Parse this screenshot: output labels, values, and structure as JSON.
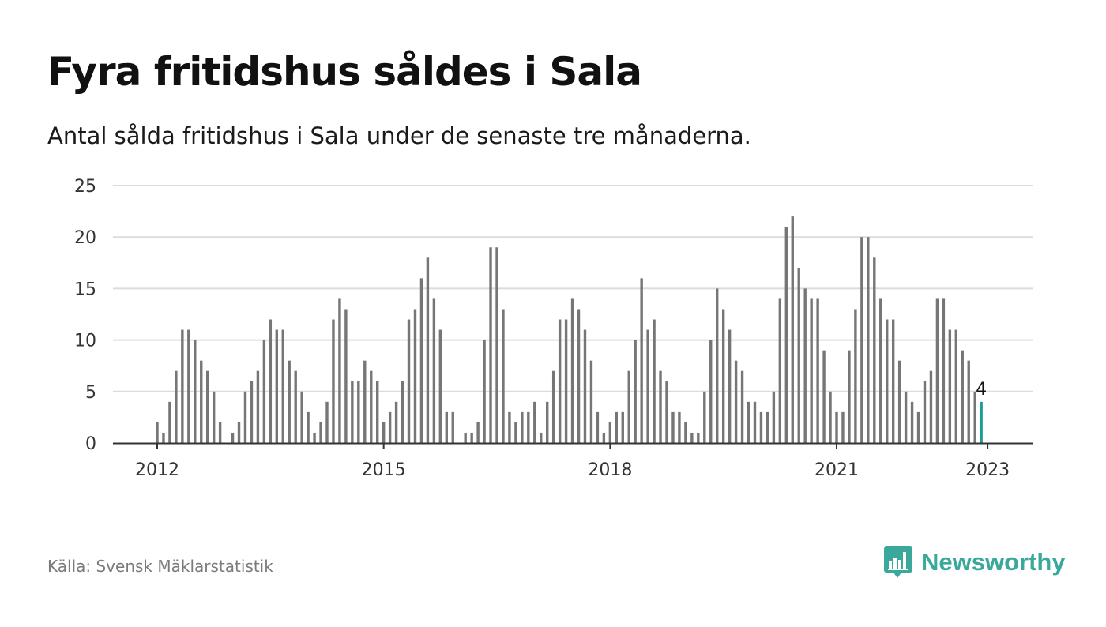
{
  "header": {
    "title": "Fyra fritidshus såldes i Sala",
    "subtitle": "Antal sålda fritidshus i Sala under de senaste tre månaderna."
  },
  "footer": {
    "source": "Källa: Svensk Mäklarstatistik",
    "brand_name": "Newsworthy",
    "brand_icon": "bar-chart-speech-bubble-icon"
  },
  "colors": {
    "bar": "#767676",
    "highlight": "#1a9c98",
    "grid": "#dcdcdc",
    "axis": "#333333",
    "brand": "#3aa89a"
  },
  "chart_data": {
    "type": "bar",
    "x_unit": "month",
    "x_start": "2012-01",
    "x_end": "2023-01",
    "ylim": [
      0,
      25
    ],
    "yticks": [
      0,
      5,
      10,
      15,
      20,
      25
    ],
    "y_tick_labels": [
      "0",
      "5",
      "10",
      "15",
      "20",
      "25"
    ],
    "xticks": [
      "2012",
      "2015",
      "2018",
      "2021",
      "2023"
    ],
    "grid": true,
    "values": [
      2,
      1,
      4,
      7,
      11,
      11,
      10,
      8,
      7,
      5,
      2,
      0,
      1,
      2,
      5,
      6,
      7,
      10,
      12,
      11,
      11,
      8,
      7,
      5,
      3,
      1,
      2,
      4,
      12,
      14,
      13,
      6,
      6,
      8,
      7,
      6,
      2,
      3,
      4,
      6,
      12,
      13,
      16,
      18,
      14,
      11,
      3,
      3,
      0,
      1,
      1,
      2,
      10,
      19,
      19,
      13,
      3,
      2,
      3,
      3,
      4,
      1,
      4,
      7,
      12,
      12,
      14,
      13,
      11,
      8,
      3,
      1,
      2,
      3,
      3,
      7,
      10,
      16,
      11,
      12,
      7,
      6,
      3,
      3,
      2,
      1,
      1,
      5,
      10,
      15,
      13,
      11,
      8,
      7,
      4,
      4,
      3,
      3,
      5,
      14,
      21,
      22,
      17,
      15,
      14,
      14,
      9,
      5,
      3,
      3,
      9,
      13,
      20,
      20,
      18,
      14,
      12,
      12,
      8,
      5,
      4,
      3,
      6,
      7,
      14,
      14,
      11,
      11,
      9,
      8,
      5,
      4
    ],
    "highlight_label": "4"
  }
}
